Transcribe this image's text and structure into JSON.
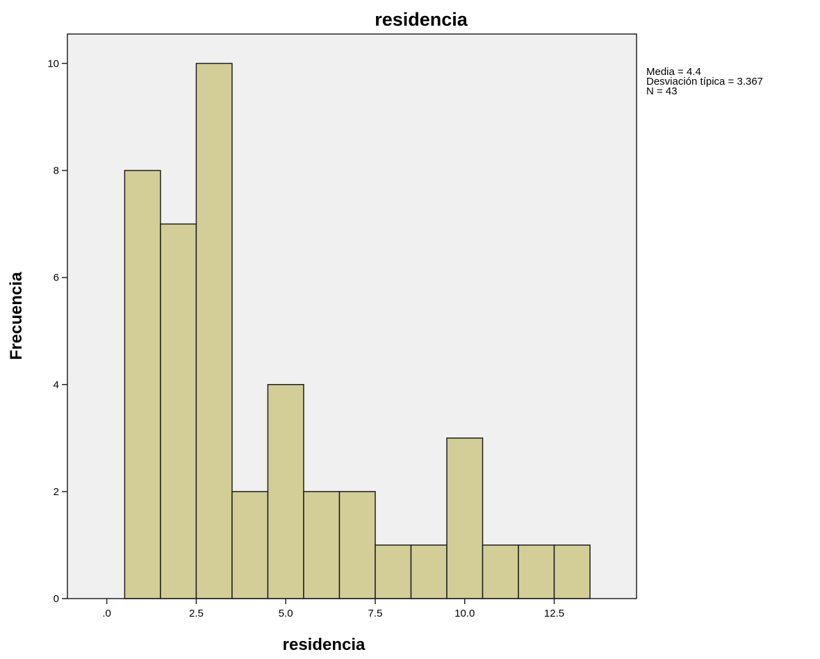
{
  "chart_data": {
    "type": "bar",
    "title": "residencia",
    "xlabel": "residencia",
    "ylabel": "Frecuencia",
    "bin_width": 1,
    "bins": [
      {
        "x": 1,
        "value": 8
      },
      {
        "x": 2,
        "value": 7
      },
      {
        "x": 3,
        "value": 10
      },
      {
        "x": 4,
        "value": 2
      },
      {
        "x": 5,
        "value": 4
      },
      {
        "x": 6,
        "value": 2
      },
      {
        "x": 7,
        "value": 2
      },
      {
        "x": 8,
        "value": 1
      },
      {
        "x": 9,
        "value": 1
      },
      {
        "x": 10,
        "value": 3
      },
      {
        "x": 11,
        "value": 1
      },
      {
        "x": 12,
        "value": 1
      },
      {
        "x": 13,
        "value": 1
      }
    ],
    "xlim": [
      -1.1,
      14.8
    ],
    "ylim": [
      0,
      10.55
    ],
    "xticks": [
      {
        "value": 0,
        "label": ".0"
      },
      {
        "value": 2.5,
        "label": "2.5"
      },
      {
        "value": 5,
        "label": "5.0"
      },
      {
        "value": 7.5,
        "label": "7.5"
      },
      {
        "value": 10,
        "label": "10.0"
      },
      {
        "value": 12.5,
        "label": "12.5"
      }
    ],
    "yticks": [
      {
        "value": 0,
        "label": "0"
      },
      {
        "value": 2,
        "label": "2"
      },
      {
        "value": 4,
        "label": "4"
      },
      {
        "value": 6,
        "label": "6"
      },
      {
        "value": 8,
        "label": "8"
      },
      {
        "value": 10,
        "label": "10"
      }
    ],
    "stats": [
      "Media = 4.4",
      "Desviación típica = 3.367",
      "N = 43"
    ],
    "grid": false,
    "legend": "none",
    "colors": {
      "bar_fill": "#d3ce98",
      "bar_stroke": "#1e1e1e",
      "plot_background": "#f0f0f0",
      "frame": "#222222"
    }
  }
}
